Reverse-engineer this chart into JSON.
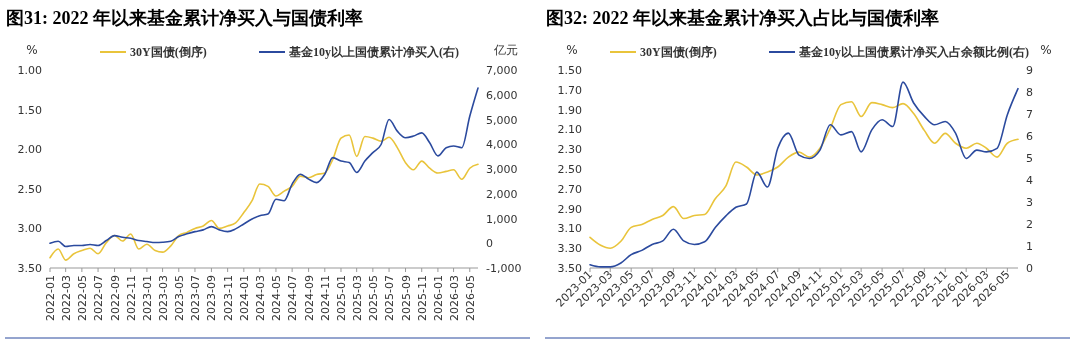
{
  "chart_data": [
    {
      "type": "line",
      "title": "图31: 2022 年以来基金累计净买入与国债利率",
      "ylabel": "%",
      "y2label": "亿元",
      "legend": "top",
      "grid": false,
      "x": [
        "2022-01",
        "2022-02",
        "2022-03",
        "2022-04",
        "2022-05",
        "2022-06",
        "2022-07",
        "2022-08",
        "2022-09",
        "2022-10",
        "2022-11",
        "2022-12",
        "2023-01",
        "2023-02",
        "2023-03",
        "2023-04",
        "2023-05",
        "2023-06",
        "2023-07",
        "2023-08",
        "2023-09",
        "2023-10",
        "2023-11",
        "2023-12",
        "2024-01",
        "2024-02",
        "2024-03",
        "2024-04",
        "2024-05",
        "2024-06",
        "2024-07",
        "2024-08",
        "2024-09",
        "2024-10",
        "2024-11",
        "2024-12",
        "2025-01",
        "2025-02",
        "2025-03",
        "2025-04",
        "2025-05",
        "2025-06",
        "2025-07",
        "2025-08",
        "2025-09",
        "2025-10",
        "2025-11",
        "2025-12",
        "2026-01",
        "2026-02",
        "2026-03",
        "2026-04",
        "2026-05",
        "2026-06"
      ],
      "xlim": [
        "2022-01",
        "2026-06"
      ],
      "xticks": [
        "2022-01",
        "2022-03",
        "2022-05",
        "2022-07",
        "2022-09",
        "2022-11",
        "2023-01",
        "2023-03",
        "2023-05",
        "2023-07",
        "2023-09",
        "2023-11",
        "2024-01",
        "2024-03",
        "2024-05",
        "2024-07",
        "2024-09",
        "2024-11",
        "2025-01",
        "2025-03",
        "2025-05",
        "2025-07",
        "2025-09",
        "2025-11",
        "2026-01",
        "2026-03",
        "2026-05"
      ],
      "ylim": [
        3.5,
        1
      ],
      "yticks": [
        {
          "value": 1,
          "label": "1.00"
        },
        {
          "value": 1.5,
          "label": "1.50"
        },
        {
          "value": 2,
          "label": "2.00"
        },
        {
          "value": 2.5,
          "label": "2.50"
        },
        {
          "value": 3,
          "label": "3.00"
        },
        {
          "value": 3.5,
          "label": "3.50"
        }
      ],
      "y2lim": [
        -1000,
        7000
      ],
      "y2ticks": [
        {
          "value": -1000,
          "label": "-1,000"
        },
        0,
        {
          "value": 1000,
          "label": "1,000"
        },
        {
          "value": 2000,
          "label": "2,000"
        },
        {
          "value": 3000,
          "label": "3,000"
        },
        {
          "value": 4000,
          "label": "4,000"
        },
        {
          "value": 5000,
          "label": "5,000"
        },
        {
          "value": 6000,
          "label": "6,000"
        },
        {
          "value": 7000,
          "label": "7,000"
        }
      ],
      "series": [
        {
          "name": "30Y国债(倒序)",
          "color": "#e9c43b",
          "values": [
            3.37,
            3.26,
            3.4,
            3.32,
            3.28,
            3.25,
            3.32,
            3.18,
            3.09,
            3.16,
            3.07,
            3.26,
            3.2,
            3.28,
            3.3,
            3.22,
            3.09,
            3.05,
            3.0,
            2.97,
            2.9,
            3.0,
            2.97,
            2.93,
            2.8,
            2.65,
            2.44,
            2.47,
            2.59,
            2.53,
            2.47,
            2.34,
            2.36,
            2.32,
            2.3,
            2.13,
            1.86,
            1.82,
            2.09,
            1.84,
            1.86,
            1.9,
            1.85,
            1.98,
            2.17,
            2.26,
            2.15,
            2.24,
            2.3,
            2.28,
            2.26,
            2.38,
            2.24,
            2.19
          ]
        },
        {
          "name": "基金10y以上国债累计净买入(右)",
          "color": "#2b4a9e",
          "axis": "y2",
          "values": [
            0,
            80,
            -130,
            -90,
            -90,
            -50,
            -90,
            110,
            310,
            240,
            200,
            110,
            70,
            30,
            40,
            80,
            270,
            380,
            470,
            540,
            670,
            540,
            470,
            580,
            780,
            980,
            1110,
            1180,
            1780,
            1720,
            2390,
            2790,
            2590,
            2450,
            2790,
            3460,
            3320,
            3260,
            2860,
            3320,
            3660,
            3990,
            5000,
            4530,
            4260,
            4330,
            4460,
            4060,
            3530,
            3860,
            3930,
            3860,
            5130,
            6270
          ]
        }
      ]
    },
    {
      "type": "line",
      "title": "图32: 2022 年以来基金累计净买入占比与国债利率",
      "ylabel": "%",
      "y2label": "%",
      "legend": "top",
      "grid": false,
      "x": [
        "2023-01",
        "2023-02",
        "2023-03",
        "2023-04",
        "2023-05",
        "2023-06",
        "2023-07",
        "2023-08",
        "2023-09",
        "2023-10",
        "2023-11",
        "2023-12",
        "2024-01",
        "2024-02",
        "2024-03",
        "2024-04",
        "2024-05",
        "2024-06",
        "2024-07",
        "2024-08",
        "2024-09",
        "2024-10",
        "2024-11",
        "2024-12",
        "2025-01",
        "2025-02",
        "2025-03",
        "2025-04",
        "2025-05",
        "2025-06",
        "2025-07",
        "2025-08",
        "2025-09",
        "2025-10",
        "2025-11",
        "2025-12",
        "2026-01",
        "2026-02",
        "2026-03",
        "2026-04",
        "2026-05",
        "2026-06"
      ],
      "xlim": [
        "2023-01",
        "2026-06"
      ],
      "xticks": [
        "2023-01",
        "2023-03",
        "2023-05",
        "2023-07",
        "2023-09",
        "2023-11",
        "2024-01",
        "2024-03",
        "2024-05",
        "2024-07",
        "2024-09",
        "2024-11",
        "2025-01",
        "2025-03",
        "2025-05",
        "2025-07",
        "2025-09",
        "2025-11",
        "2026-01",
        "2026-03",
        "2026-05"
      ],
      "ylim": [
        3.5,
        1.5
      ],
      "yticks": [
        {
          "value": 1.5,
          "label": "1.50"
        },
        {
          "value": 1.7,
          "label": "1.70"
        },
        {
          "value": 1.9,
          "label": "1.90"
        },
        {
          "value": 2.1,
          "label": "2.10"
        },
        {
          "value": 2.3,
          "label": "2.30"
        },
        {
          "value": 2.5,
          "label": "2.50"
        },
        {
          "value": 2.7,
          "label": "2.70"
        },
        {
          "value": 2.9,
          "label": "2.90"
        },
        {
          "value": 3.1,
          "label": "3.10"
        },
        {
          "value": 3.3,
          "label": "3.30"
        },
        {
          "value": 3.5,
          "label": "3.50"
        }
      ],
      "y2lim": [
        0,
        9
      ],
      "y2ticks": [
        0,
        1,
        2,
        3,
        4,
        5,
        6,
        7,
        8,
        9
      ],
      "series": [
        {
          "name": "30Y国债(倒序)",
          "color": "#e9c43b",
          "values": [
            3.19,
            3.27,
            3.3,
            3.23,
            3.09,
            3.06,
            3.01,
            2.97,
            2.88,
            3.0,
            2.97,
            2.96,
            2.8,
            2.67,
            2.43,
            2.48,
            2.56,
            2.53,
            2.48,
            2.38,
            2.33,
            2.38,
            2.29,
            2.09,
            1.85,
            1.82,
            1.97,
            1.83,
            1.85,
            1.88,
            1.84,
            1.94,
            2.11,
            2.24,
            2.14,
            2.24,
            2.29,
            2.24,
            2.29,
            2.38,
            2.24,
            2.2
          ]
        },
        {
          "name": "基金10y以上国债累计净买入占余额比例(右)",
          "color": "#2b4a9e",
          "axis": "y2",
          "values": [
            0.15,
            0.05,
            0.05,
            0.23,
            0.61,
            0.8,
            1.07,
            1.23,
            1.76,
            1.23,
            1.07,
            1.19,
            1.84,
            2.37,
            2.76,
            2.91,
            4.36,
            3.68,
            5.44,
            6.13,
            5.13,
            4.98,
            5.36,
            6.51,
            6.05,
            6.2,
            5.28,
            6.28,
            6.74,
            6.43,
            8.45,
            7.5,
            6.89,
            6.51,
            6.66,
            6.13,
            4.98,
            5.36,
            5.28,
            5.44,
            6.97,
            8.15
          ]
        }
      ]
    }
  ]
}
